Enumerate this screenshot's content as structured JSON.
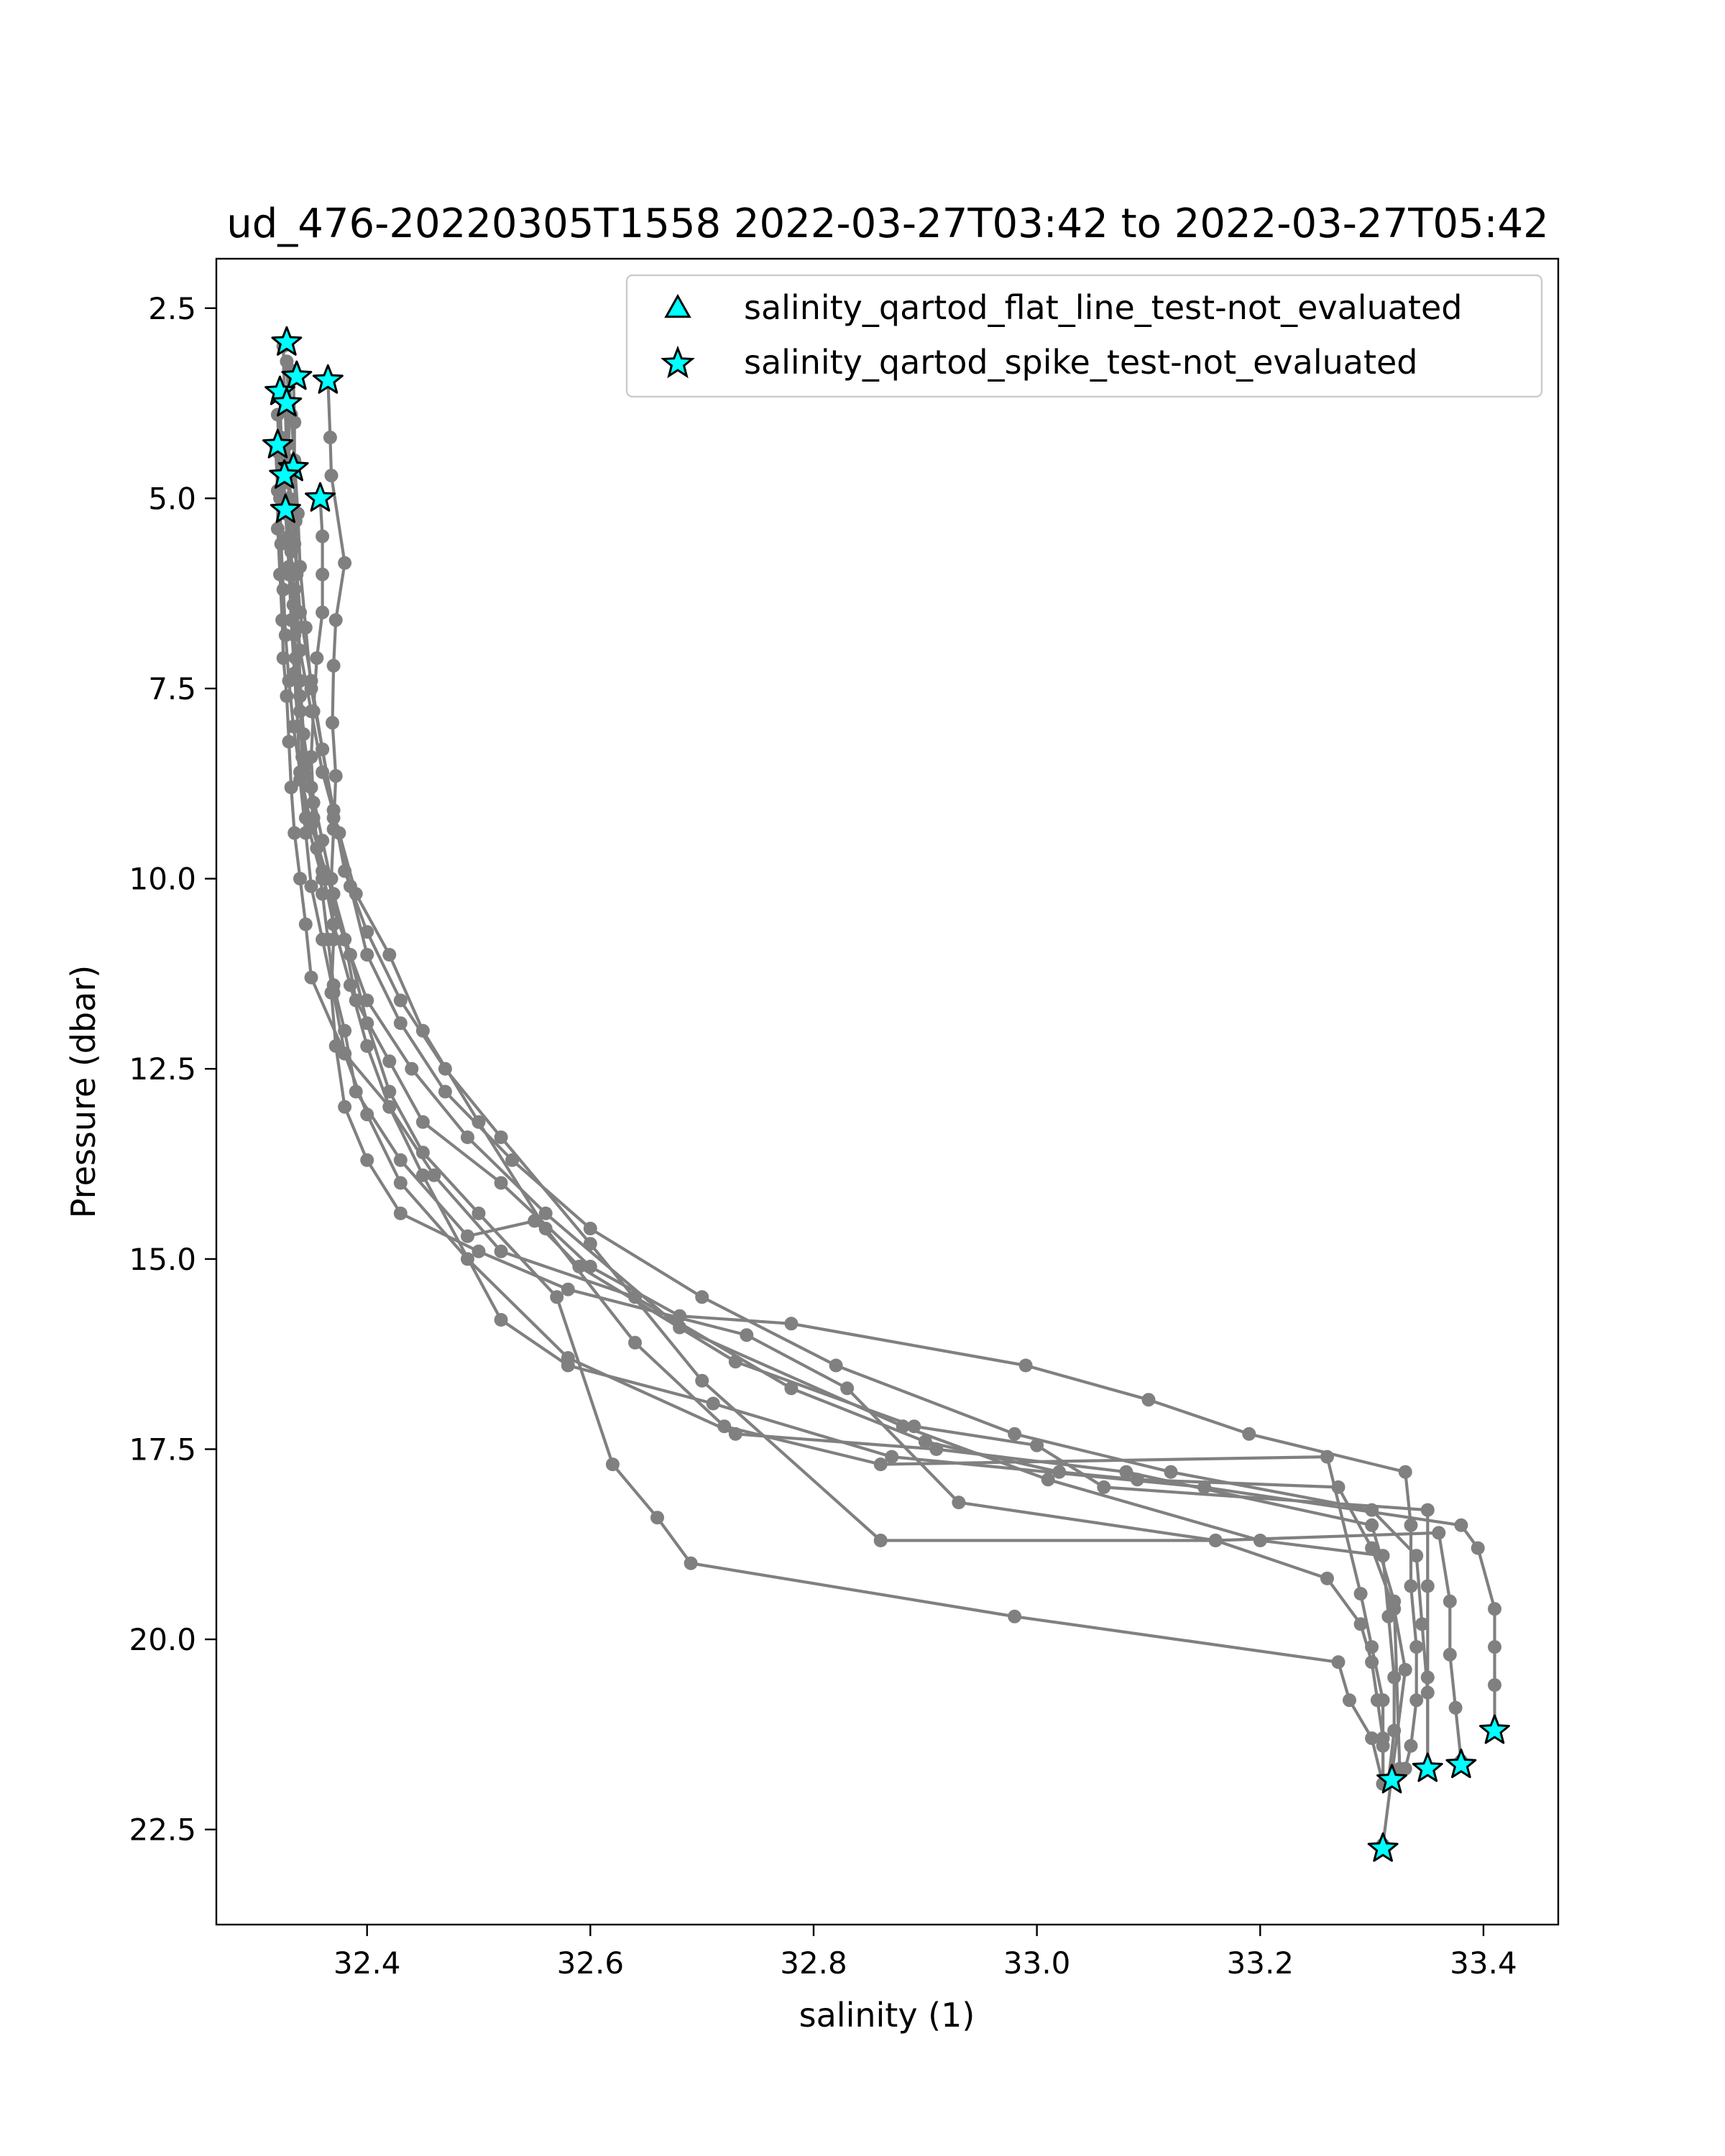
{
  "chart_data": {
    "type": "scatter",
    "title": "ud_476-20220305T1558 2022-03-27T03:42 to 2022-03-27T05:42",
    "xlabel": "salinity (1)",
    "ylabel": "Pressure (dbar)",
    "xlim": [
      32.265,
      33.467
    ],
    "ylim": [
      23.75,
      1.85
    ],
    "y_inverted": true,
    "grid": false,
    "legend_position": "top-right",
    "x_ticks": [
      "32.4",
      "32.6",
      "32.8",
      "33.0",
      "33.2",
      "33.4"
    ],
    "y_ticks": [
      "2.5",
      "5.0",
      "7.5",
      "10.0",
      "12.5",
      "15.0",
      "17.5",
      "20.0",
      "22.5"
    ],
    "colors": {
      "profile_line": "#808080",
      "marker_face": "#00ffff",
      "marker_edge": "#000000"
    },
    "legend": [
      {
        "marker": "triangle",
        "label": "salinity_qartod_flat_line_test-not_evaluated"
      },
      {
        "marker": "star",
        "label": "salinity_qartod_spike_test-not_evaluated"
      }
    ],
    "series": [
      {
        "x": [
          32.328,
          32.33,
          32.33,
          32.331,
          32.33,
          32.335,
          32.34,
          32.342,
          32.345,
          32.36,
          32.38,
          32.39,
          32.42,
          32.45,
          32.52,
          32.6,
          32.68,
          32.78,
          32.99,
          33.1,
          33.19,
          33.33,
          33.335,
          33.335,
          33.34,
          33.34,
          33.335,
          33.33
        ],
        "y": [
          3.2,
          3.8,
          4.5,
          5.2,
          6.0,
          6.8,
          7.6,
          8.4,
          9.2,
          10.0,
          10.8,
          11.6,
          12.4,
          13.2,
          14.0,
          15.1,
          15.75,
          15.85,
          16.4,
          16.85,
          17.3,
          17.8,
          18.5,
          19.3,
          20.1,
          20.8,
          21.4,
          21.7
        ]
      },
      {
        "x": [
          32.365,
          32.367,
          32.368,
          32.38,
          32.372,
          32.37,
          32.369,
          32.372,
          32.37,
          32.368,
          32.37,
          32.368,
          32.372,
          32.38,
          32.4,
          32.43,
          32.5,
          32.58,
          32.74,
          32.83,
          32.93,
          33.16,
          33.36,
          33.37,
          33.37,
          33.375,
          33.38
        ],
        "y": [
          3.45,
          4.2,
          4.7,
          5.85,
          6.6,
          7.2,
          7.95,
          8.65,
          9.35,
          10.0,
          10.8,
          11.5,
          12.2,
          13.0,
          13.7,
          14.4,
          14.9,
          15.4,
          16.0,
          16.7,
          18.2,
          18.7,
          18.6,
          19.5,
          20.2,
          20.9,
          21.6
        ]
      },
      {
        "x": [
          32.358,
          32.36,
          32.36,
          32.36,
          32.355,
          32.352,
          32.35,
          32.352,
          32.355,
          32.36,
          32.365,
          32.37,
          32.38,
          32.39,
          32.43,
          32.49,
          32.55,
          32.59,
          32.73,
          32.89,
          33.0,
          33.06,
          33.35,
          33.35,
          33.35,
          33.35
        ],
        "y": [
          5.0,
          5.5,
          6.0,
          6.5,
          7.1,
          7.8,
          8.4,
          9.0,
          9.6,
          10.2,
          10.8,
          11.4,
          12.0,
          12.8,
          13.7,
          14.7,
          14.5,
          15.1,
          16.35,
          17.2,
          17.45,
          18.0,
          18.3,
          19.3,
          20.5,
          21.7
        ]
      },
      {
        "x": [
          32.318,
          32.32,
          32.32,
          32.322,
          32.324,
          32.325,
          32.328,
          32.33,
          32.332,
          32.335,
          32.34,
          32.345,
          32.35,
          32.38,
          32.42,
          32.46,
          32.52,
          32.64,
          32.78,
          32.9,
          33.02,
          33.09,
          33.27,
          33.3,
          33.32,
          33.33,
          33.31
        ],
        "y": [
          4.3,
          4.9,
          5.4,
          6.0,
          6.6,
          7.1,
          7.6,
          8.2,
          8.8,
          9.4,
          10.0,
          10.6,
          11.3,
          12.3,
          13.0,
          13.9,
          14.9,
          15.5,
          16.7,
          17.4,
          17.8,
          17.9,
          18.0,
          18.8,
          19.6,
          20.4,
          22.7
        ]
      },
      {
        "x": [
          32.32,
          32.321,
          32.322,
          32.323,
          32.325,
          32.327,
          32.33,
          32.334,
          32.34,
          32.35,
          32.365,
          32.38,
          32.4,
          32.44,
          32.49,
          32.56,
          32.68,
          32.88,
          33.01,
          33.2,
          33.31,
          33.315,
          33.32,
          33.32,
          33.315
        ],
        "y": [
          3.9,
          4.4,
          5.0,
          5.6,
          6.2,
          6.8,
          7.4,
          8.0,
          8.6,
          9.3,
          10.0,
          10.8,
          11.6,
          12.5,
          13.4,
          14.4,
          15.9,
          17.2,
          17.9,
          18.7,
          18.9,
          19.7,
          20.5,
          21.2,
          21.85
        ]
      },
      {
        "x": [
          32.325,
          32.327,
          32.33,
          32.332,
          32.335,
          32.338,
          32.34,
          32.345,
          32.35,
          32.36,
          32.37,
          32.38,
          32.4,
          32.43,
          32.49,
          32.58,
          32.73,
          32.91,
          33.08,
          33.3,
          33.32,
          33.325
        ],
        "y": [
          4.6,
          5.2,
          5.9,
          6.6,
          7.3,
          8.0,
          8.7,
          9.4,
          10.1,
          10.8,
          11.5,
          12.3,
          13.1,
          14.0,
          15.0,
          16.3,
          17.3,
          17.5,
          17.8,
          18.5,
          19.5,
          21.7
        ]
      },
      {
        "x": [
          32.33,
          32.332,
          32.335,
          32.338,
          32.34,
          32.345,
          32.35,
          32.36,
          32.37,
          32.38,
          32.4,
          32.43,
          32.47,
          32.52,
          32.6,
          32.7,
          32.86,
          33.16,
          33.26,
          33.29,
          33.3,
          33.305,
          33.31,
          33.31
        ],
        "y": [
          3.3,
          3.9,
          4.5,
          5.2,
          5.9,
          6.7,
          7.5,
          8.3,
          9.1,
          9.9,
          10.7,
          11.6,
          12.5,
          13.4,
          14.8,
          16.6,
          18.7,
          18.7,
          19.2,
          19.8,
          20.3,
          20.8,
          21.3,
          21.9
        ]
      },
      {
        "x": [
          32.322,
          32.323,
          32.325,
          32.33,
          32.335,
          32.34,
          32.35,
          32.36,
          32.375,
          32.39,
          32.42,
          32.45,
          32.5,
          32.56,
          32.64,
          32.72,
          32.86,
          33.26,
          33.29,
          33.3,
          33.31,
          33.31,
          33.31
        ],
        "y": [
          3.6,
          4.2,
          4.8,
          5.5,
          6.2,
          7.0,
          7.8,
          8.6,
          9.4,
          10.2,
          11.0,
          12.0,
          13.2,
          14.6,
          16.1,
          17.2,
          17.7,
          17.6,
          19.4,
          20.1,
          20.8,
          21.4,
          21.9
        ]
      },
      {
        "x": [
          32.334,
          32.335,
          32.335,
          32.336,
          32.337,
          32.338,
          32.34,
          32.343,
          32.35,
          32.36,
          32.37,
          32.385,
          32.4,
          32.42,
          32.45,
          32.5,
          32.57,
          32.62,
          32.66,
          32.69,
          32.98,
          33.27,
          33.28,
          33.3,
          33.31
        ],
        "y": [
          3.4,
          4.0,
          4.6,
          5.3,
          6.0,
          6.7,
          7.4,
          8.1,
          8.8,
          9.5,
          10.2,
          11.0,
          11.9,
          12.8,
          13.6,
          14.4,
          15.5,
          17.7,
          18.4,
          19.0,
          19.7,
          20.3,
          20.8,
          21.3,
          21.9
        ]
      },
      {
        "x": [
          32.325,
          32.326,
          32.328,
          32.33,
          32.332,
          32.334,
          32.336,
          32.34,
          32.345,
          32.352,
          32.36,
          32.37,
          32.385,
          32.4,
          32.42,
          32.45,
          32.52,
          32.58,
          32.71,
          32.87,
          33.15,
          33.38,
          33.395,
          33.41,
          33.41,
          33.41,
          33.41
        ],
        "y": [
          3.0,
          3.6,
          4.3,
          5.0,
          5.7,
          6.4,
          7.1,
          7.8,
          8.5,
          9.2,
          9.9,
          10.6,
          11.4,
          12.2,
          13.0,
          13.9,
          15.8,
          16.4,
          16.9,
          17.6,
          18.0,
          18.5,
          18.8,
          19.6,
          20.1,
          20.6,
          21.2
        ]
      },
      {
        "x": [
          32.327,
          32.33,
          32.335,
          32.34,
          32.35,
          32.36,
          32.37,
          32.385,
          32.4,
          32.43,
          32.47,
          32.53,
          32.6,
          32.7,
          32.82,
          32.98,
          33.12,
          33.3,
          33.34,
          33.345,
          33.35,
          33.35
        ],
        "y": [
          3.8,
          4.7,
          5.6,
          6.5,
          7.4,
          8.3,
          9.2,
          10.1,
          11.0,
          11.9,
          12.8,
          13.7,
          14.6,
          15.5,
          16.4,
          17.3,
          17.8,
          18.3,
          18.9,
          19.8,
          20.7,
          21.7
        ]
      }
    ],
    "star_flags": {
      "x": [
        32.328,
        32.337,
        32.365,
        32.322,
        32.328,
        32.32,
        32.334,
        32.326,
        32.358,
        32.327,
        33.41,
        33.38,
        33.35,
        33.318,
        33.31
      ],
      "y": [
        2.95,
        3.4,
        3.45,
        3.6,
        3.75,
        4.3,
        4.6,
        4.7,
        5.0,
        5.15,
        21.2,
        21.65,
        21.7,
        21.85,
        22.75
      ]
    },
    "triangle_flags": {
      "x": [],
      "y": []
    }
  }
}
